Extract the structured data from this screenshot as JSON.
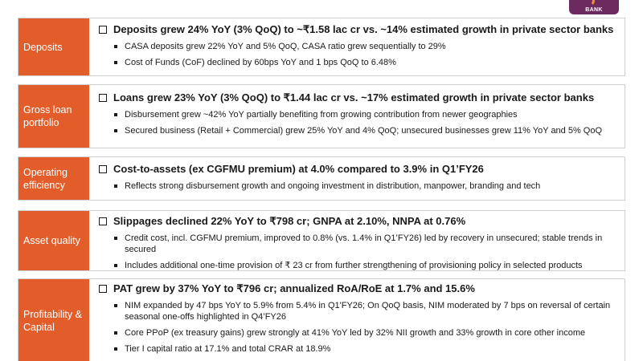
{
  "logo": {
    "text": "BANK"
  },
  "sections": [
    {
      "label": "Deposits",
      "headline": "Deposits grew 24% YoY (3% QoQ) to ~₹1.58 lac cr vs. ~14% estimated growth in private sector banks",
      "bullets": [
        "CASA deposits grew 22% YoY and 5% QoQ, CASA ratio grew sequentially to 29%",
        "Cost of Funds (CoF) declined by 60bps YoY and 1 bps QoQ to 6.48%"
      ]
    },
    {
      "label": "Gross loan portfolio",
      "headline": "Loans grew 23% YoY (3% QoQ) to ₹1.44 lac cr vs. ~17% estimated growth in private sector banks",
      "bullets": [
        "Disbursement grew ~42% YoY partially benefiting from growing contribution from newer geographies",
        "Secured business (Retail + Commercial) grew 25% YoY and 4% QoQ; unsecured businesses grew 11% YoY and 5% QoQ"
      ]
    },
    {
      "label": "Operating efficiency",
      "headline": "Cost-to-assets (ex CGFMU premium) at 4.0% compared to 3.9% in Q1’FY26",
      "bullets": [
        "Reflects strong disbursement growth and ongoing investment in distribution, manpower, branding and tech"
      ]
    },
    {
      "label": "Asset quality",
      "headline": "Slippages declined 22% YoY to ₹798 cr; GNPA at 2.10%, NNPA at 0.76%",
      "bullets": [
        "Credit cost, incl. CGFMU premium, improved to 0.8% (vs. 1.4% in Q1’FY26) led by recovery in unsecured; stable trends in secured",
        "Includes additional one-time provision of  ₹ 23 cr from further strengthening of provisioning policy in selected products"
      ]
    },
    {
      "label": "Profitability & Capital",
      "headline": "PAT grew by 37% YoY to ₹796 cr; annualized RoA/RoE at 1.7% and 15.6%",
      "bullets": [
        "NIM expanded by 47 bps YoY to 5.9% from 5.4% in Q1'FY26; On QoQ basis, NIM moderated by 7 bps on reversal of certain seasonal one-offs highlighted in Q4’FY26",
        "Core PPoP (ex treasury gains) grew strongly at 41% YoY led by 32% NII growth and 33% growth in core other income",
        "Tier I capital ratio at 17.1% and total CRAR at 18.9%"
      ]
    }
  ]
}
